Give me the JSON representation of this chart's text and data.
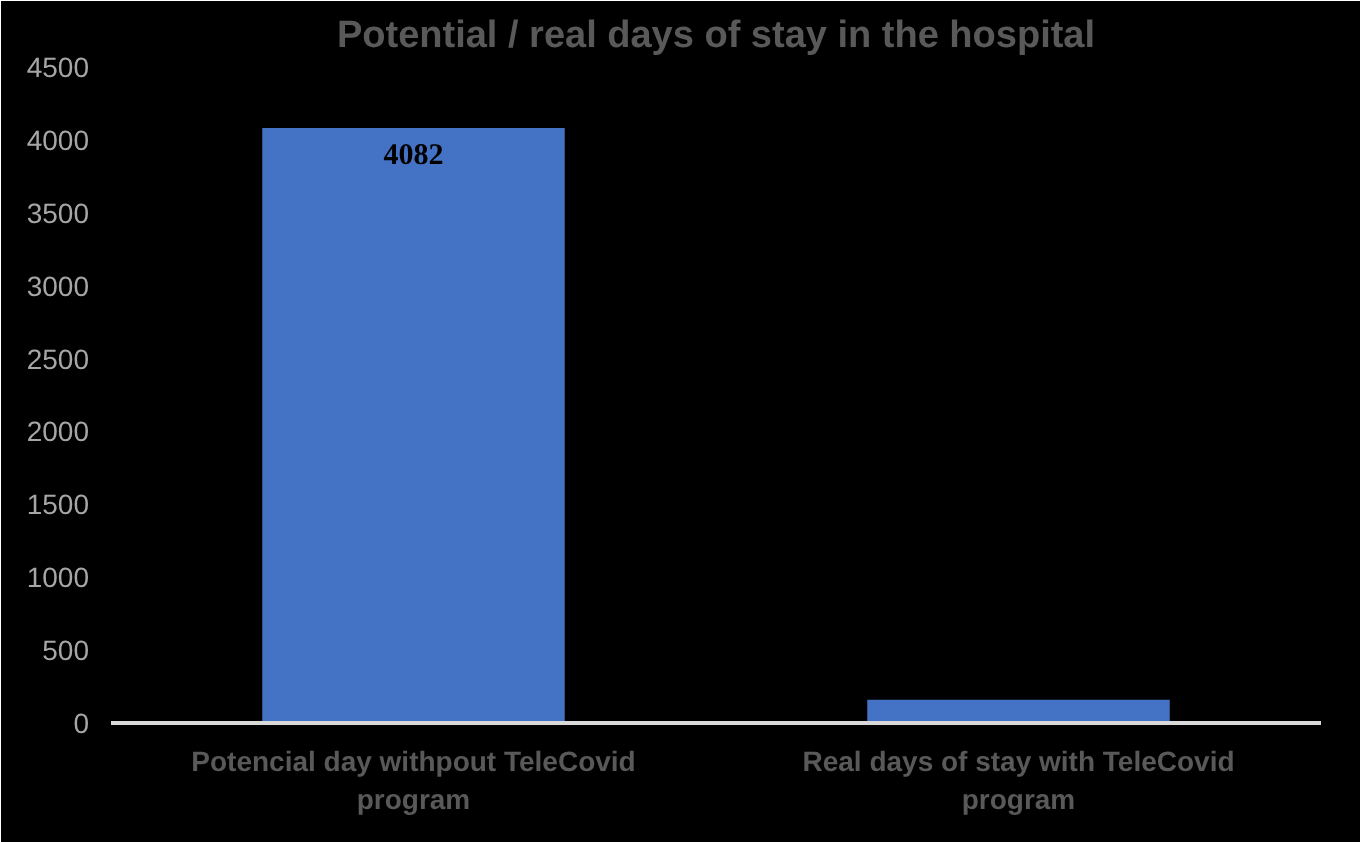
{
  "chart_data": {
    "type": "bar",
    "title": "Potential / real days of stay in the hospital",
    "categories": [
      "Potencial day withpout TeleCovid program",
      "Real days of stay with TeleCovid program"
    ],
    "values": [
      4082,
      160
    ],
    "value_labels": [
      "4082",
      null
    ],
    "color": "#4472c4",
    "ylim": [
      0,
      4500
    ],
    "yticks": [
      0,
      500,
      1000,
      1500,
      2000,
      2500,
      3000,
      3500,
      4000,
      4500
    ],
    "grid": false
  }
}
